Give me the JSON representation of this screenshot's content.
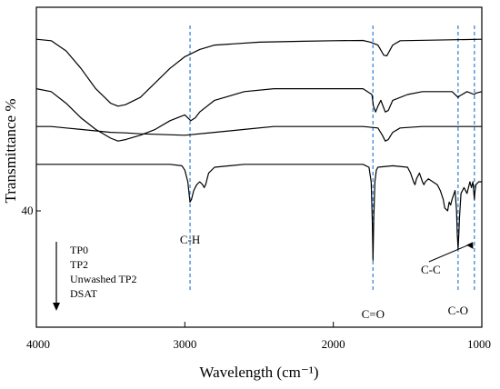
{
  "chart_data": {
    "type": "line",
    "title": "",
    "xlabel": "Wavelength (cm⁻¹)",
    "ylabel": "Transmittance %",
    "xlim": [
      4000,
      1000
    ],
    "x_reversed": true,
    "x_ticks": [
      4000,
      3000,
      2000,
      1000
    ],
    "y_tick_labels": [
      "40"
    ],
    "grid": false,
    "legend": {
      "placement": "bottom-left",
      "entries": [
        "TP0",
        "TP2",
        "Unwashed TP2",
        "DSAT"
      ],
      "arrow": "down"
    },
    "series_order_top_to_bottom": [
      "TP0",
      "TP2",
      "Unwashed TP2",
      "DSAT"
    ],
    "series": [
      {
        "name": "TP0",
        "points": [
          [
            4000,
            99
          ],
          [
            3900,
            98.5
          ],
          [
            3800,
            95
          ],
          [
            3700,
            89
          ],
          [
            3600,
            82
          ],
          [
            3500,
            77
          ],
          [
            3450,
            76
          ],
          [
            3400,
            76.5
          ],
          [
            3300,
            79
          ],
          [
            3200,
            84
          ],
          [
            3100,
            89
          ],
          [
            3000,
            93
          ],
          [
            2900,
            95.5
          ],
          [
            2800,
            97
          ],
          [
            2500,
            98
          ],
          [
            2200,
            98.3
          ],
          [
            2000,
            98.5
          ],
          [
            1800,
            98.6
          ],
          [
            1750,
            98
          ],
          [
            1700,
            97
          ],
          [
            1660,
            93.5
          ],
          [
            1640,
            93.3
          ],
          [
            1600,
            97
          ],
          [
            1550,
            98.5
          ],
          [
            1000,
            99
          ]
        ]
      },
      {
        "name": "TP2",
        "points": [
          [
            4000,
            82
          ],
          [
            3900,
            81
          ],
          [
            3800,
            77
          ],
          [
            3700,
            72
          ],
          [
            3600,
            68
          ],
          [
            3500,
            65
          ],
          [
            3450,
            64
          ],
          [
            3400,
            64.5
          ],
          [
            3300,
            66
          ],
          [
            3200,
            68
          ],
          [
            3100,
            71
          ],
          [
            3000,
            73
          ],
          [
            2960,
            71
          ],
          [
            2930,
            72
          ],
          [
            2900,
            74
          ],
          [
            2800,
            78
          ],
          [
            2600,
            81
          ],
          [
            2400,
            82
          ],
          [
            2200,
            82
          ],
          [
            2000,
            82
          ],
          [
            1800,
            82
          ],
          [
            1740,
            80
          ],
          [
            1730,
            76
          ],
          [
            1715,
            74
          ],
          [
            1700,
            76
          ],
          [
            1680,
            78
          ],
          [
            1650,
            74
          ],
          [
            1630,
            74.5
          ],
          [
            1600,
            78
          ],
          [
            1500,
            80
          ],
          [
            1400,
            81
          ],
          [
            1200,
            81
          ],
          [
            1160,
            79
          ],
          [
            1150,
            79.5
          ],
          [
            1100,
            81
          ],
          [
            1050,
            80
          ],
          [
            1040,
            80.5
          ],
          [
            1000,
            81
          ]
        ]
      },
      {
        "name": "Unwashed TP2",
        "points": [
          [
            4000,
            69
          ],
          [
            3900,
            69
          ],
          [
            3800,
            68.5
          ],
          [
            3700,
            68
          ],
          [
            3600,
            67.5
          ],
          [
            3500,
            67
          ],
          [
            3400,
            66.8
          ],
          [
            3300,
            66.5
          ],
          [
            3000,
            66
          ],
          [
            2800,
            67
          ],
          [
            2600,
            68
          ],
          [
            2400,
            69
          ],
          [
            2200,
            69
          ],
          [
            2000,
            69
          ],
          [
            1800,
            69
          ],
          [
            1700,
            68.5
          ],
          [
            1670,
            66
          ],
          [
            1650,
            64
          ],
          [
            1630,
            64.5
          ],
          [
            1600,
            67
          ],
          [
            1550,
            68.5
          ],
          [
            1400,
            69
          ],
          [
            1200,
            69
          ],
          [
            1000,
            69
          ]
        ]
      },
      {
        "name": "DSAT",
        "points": [
          [
            4000,
            56
          ],
          [
            3500,
            56
          ],
          [
            3100,
            56
          ],
          [
            3020,
            55.5
          ],
          [
            3000,
            54
          ],
          [
            2980,
            50
          ],
          [
            2965,
            43
          ],
          [
            2955,
            44
          ],
          [
            2940,
            47
          ],
          [
            2920,
            49
          ],
          [
            2900,
            50
          ],
          [
            2880,
            49
          ],
          [
            2870,
            48
          ],
          [
            2860,
            49
          ],
          [
            2840,
            53
          ],
          [
            2800,
            55
          ],
          [
            2600,
            56
          ],
          [
            2200,
            56
          ],
          [
            1800,
            56
          ],
          [
            1760,
            55
          ],
          [
            1745,
            50
          ],
          [
            1738,
            37
          ],
          [
            1733,
            23
          ],
          [
            1728,
            37
          ],
          [
            1720,
            50
          ],
          [
            1710,
            54
          ],
          [
            1700,
            55
          ],
          [
            1600,
            55.5
          ],
          [
            1500,
            55
          ],
          [
            1480,
            53
          ],
          [
            1460,
            50
          ],
          [
            1450,
            49
          ],
          [
            1440,
            51
          ],
          [
            1420,
            53
          ],
          [
            1400,
            50
          ],
          [
            1390,
            49
          ],
          [
            1380,
            50
          ],
          [
            1360,
            51
          ],
          [
            1330,
            50
          ],
          [
            1300,
            49
          ],
          [
            1280,
            47
          ],
          [
            1260,
            44
          ],
          [
            1250,
            41
          ],
          [
            1230,
            40
          ],
          [
            1220,
            43
          ],
          [
            1210,
            42
          ],
          [
            1200,
            44
          ],
          [
            1180,
            47
          ],
          [
            1170,
            40
          ],
          [
            1165,
            32
          ],
          [
            1160,
            27
          ],
          [
            1155,
            32
          ],
          [
            1150,
            38
          ],
          [
            1140,
            46
          ],
          [
            1120,
            48
          ],
          [
            1100,
            46
          ],
          [
            1090,
            48
          ],
          [
            1080,
            50
          ],
          [
            1070,
            48
          ],
          [
            1060,
            50
          ],
          [
            1055,
            47
          ],
          [
            1050,
            44
          ],
          [
            1045,
            47
          ],
          [
            1040,
            49
          ],
          [
            1020,
            50
          ],
          [
            1000,
            50
          ]
        ]
      }
    ],
    "reference_lines": [
      {
        "x": 2965,
        "label": "C-H"
      },
      {
        "x": 1733,
        "label": "C=O"
      },
      {
        "x": 1160,
        "label": "C-O"
      },
      {
        "x": 1050,
        "label": "C-C"
      }
    ]
  }
}
